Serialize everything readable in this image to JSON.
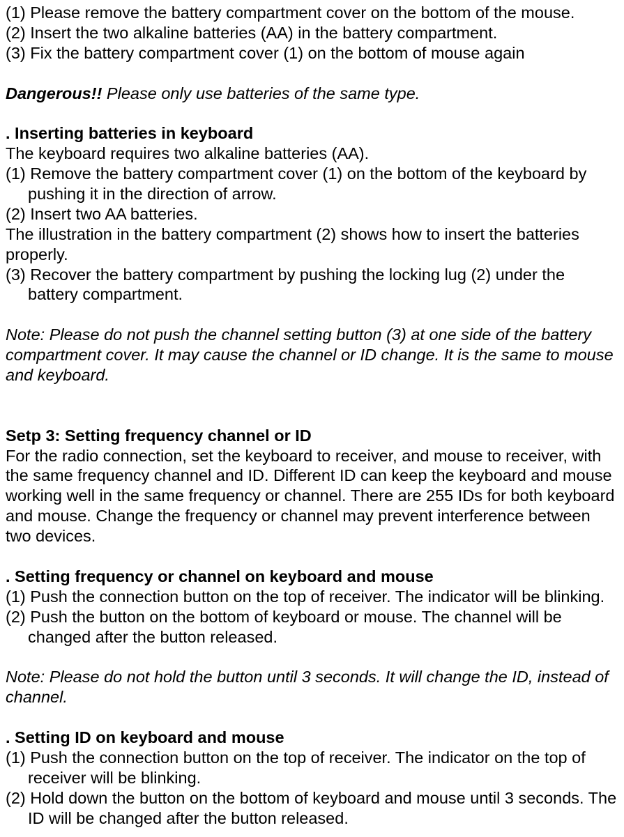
{
  "colors": {
    "text": "#000000",
    "background": "#ffffff"
  },
  "typography": {
    "font_family": "Arial",
    "font_size_pt": 18,
    "line_height": 1.23
  },
  "mouse_batt": {
    "s1": "(1) Please remove the battery compartment cover on the bottom of the mouse.",
    "s2": "(2) Insert the two alkaline batteries (AA) in the battery compartment.",
    "s3": "(3) Fix the battery compartment cover (1) on the bottom of mouse again"
  },
  "danger": {
    "lead": "Dangerous!!",
    "rest": " Please only use batteries of the same type."
  },
  "kb_batt": {
    "title": ". Inserting batteries in keyboard",
    "intro": "The keyboard requires two alkaline batteries (AA).",
    "s1": "(1) Remove the battery compartment cover (1) on the bottom of the keyboard by pushing it in the direction of arrow.",
    "s2": "(2) Insert two AA batteries.",
    "illus": "The illustration in the battery compartment (2) shows how to insert the batteries properly.",
    "s3": "(3) Recover the battery compartment by pushing the locking lug (2) under the battery compartment."
  },
  "note1": {
    "text": "Note: Please do not push the channel setting button (3) at one side of the battery compartment cover. It may cause the channel or ID change. It is the same to mouse and keyboard."
  },
  "step3": {
    "title": "Setp 3: Setting frequency channel or ID",
    "intro": "For the radio connection, set the keyboard to receiver, and mouse to receiver, with the same frequency channel and ID. Different ID can keep the keyboard and mouse working well in the same frequency or channel. There are 255 IDs for both keyboard and mouse. Change the frequency or channel may prevent interference between two devices."
  },
  "setfreq": {
    "title": ". Setting frequency or channel on keyboard and mouse",
    "s1": "(1) Push the connection button on the top of receiver. The indicator will be blinking.",
    "s2": "(2) Push the button on the bottom of keyboard or mouse. The channel will be changed after the button released."
  },
  "note2": {
    "text": "Note: Please do not hold the button until 3 seconds. It will change the ID, instead of channel."
  },
  "setid": {
    "title": ". Setting ID on keyboard and mouse",
    "s1": "(1) Push the connection button on the top of receiver. The indicator on the top of receiver will be blinking.",
    "s2": "(2) Hold down the button on the bottom of keyboard and mouse until 3 seconds. The ID will be changed after the button released."
  }
}
